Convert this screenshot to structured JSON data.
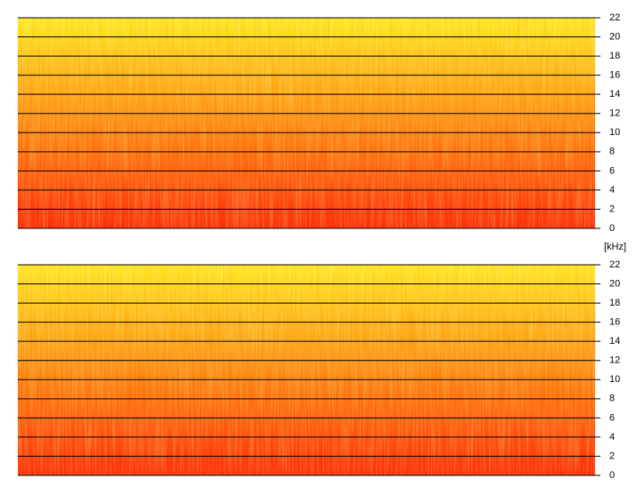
{
  "chart_data": [
    {
      "type": "spectrogram",
      "ylim": [
        0,
        22
      ],
      "yticks": [
        0,
        2,
        4,
        6,
        8,
        10,
        12,
        14,
        16,
        18,
        20,
        22
      ],
      "grid": true,
      "colors": [
        "#ff2a0a",
        "#ff8a14",
        "#ffea24"
      ]
    },
    {
      "type": "spectrogram",
      "y_label": "[kHz]",
      "ylim": [
        0,
        22
      ],
      "yticks": [
        0,
        2,
        4,
        6,
        8,
        10,
        12,
        14,
        16,
        18,
        20,
        22
      ],
      "grid": true,
      "colors": [
        "#ff2a0a",
        "#ff8a14",
        "#ffea24"
      ]
    }
  ]
}
